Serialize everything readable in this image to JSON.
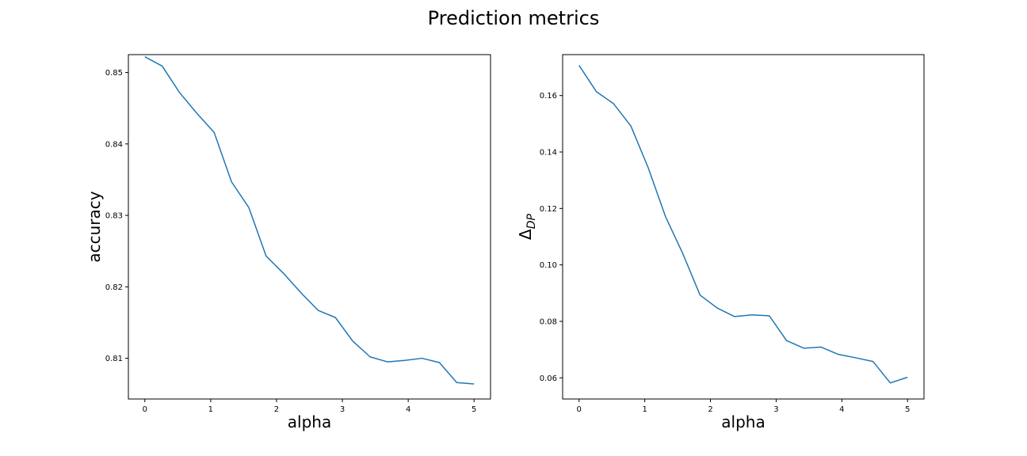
{
  "figure": {
    "title": "Prediction metrics"
  },
  "chart_data": [
    {
      "type": "line",
      "xlabel": "alpha",
      "ylabel": "accuracy",
      "xlim": [
        -0.25,
        5.25
      ],
      "ylim": [
        0.8043,
        0.8525
      ],
      "xticks": [
        0,
        1,
        2,
        3,
        4,
        5
      ],
      "yticks": [
        0.81,
        0.82,
        0.83,
        0.84,
        0.85
      ],
      "ytick_labels": [
        "0.81",
        "0.82",
        "0.83",
        "0.84",
        "0.85"
      ],
      "grid": false,
      "series": [
        {
          "color": "#1f77b4",
          "x": [
            0,
            0.263,
            0.526,
            0.789,
            1.053,
            1.316,
            1.579,
            1.842,
            2.105,
            2.368,
            2.632,
            2.895,
            3.158,
            3.421,
            3.684,
            3.947,
            4.211,
            4.474,
            4.737,
            5.0
          ],
          "values": [
            0.8522,
            0.8509,
            0.8472,
            0.8443,
            0.8416,
            0.8347,
            0.8311,
            0.8243,
            0.8219,
            0.8192,
            0.8167,
            0.8157,
            0.8124,
            0.8102,
            0.8095,
            0.8097,
            0.81,
            0.8094,
            0.8066,
            0.8064
          ]
        }
      ]
    },
    {
      "type": "line",
      "xlabel": "alpha",
      "ylabel_main": "Δ",
      "ylabel_sub": "DP",
      "xlim": [
        -0.25,
        5.25
      ],
      "ylim": [
        0.0525,
        0.1745
      ],
      "xticks": [
        0,
        1,
        2,
        3,
        4,
        5
      ],
      "yticks": [
        0.06,
        0.08,
        0.1,
        0.12,
        0.14,
        0.16
      ],
      "ytick_labels": [
        "0.06",
        "0.08",
        "0.10",
        "0.12",
        "0.14",
        "0.16"
      ],
      "grid": false,
      "series": [
        {
          "color": "#1f77b4",
          "x": [
            0,
            0.263,
            0.526,
            0.789,
            1.053,
            1.316,
            1.579,
            1.842,
            2.105,
            2.368,
            2.632,
            2.895,
            3.158,
            3.421,
            3.684,
            3.947,
            4.211,
            4.474,
            4.737,
            5.0
          ],
          "values": [
            0.1707,
            0.1614,
            0.1571,
            0.1492,
            0.1344,
            0.1171,
            0.104,
            0.0893,
            0.0847,
            0.0817,
            0.0823,
            0.082,
            0.0732,
            0.0705,
            0.0709,
            0.0683,
            0.0671,
            0.0658,
            0.0582,
            0.0602
          ]
        }
      ]
    }
  ]
}
